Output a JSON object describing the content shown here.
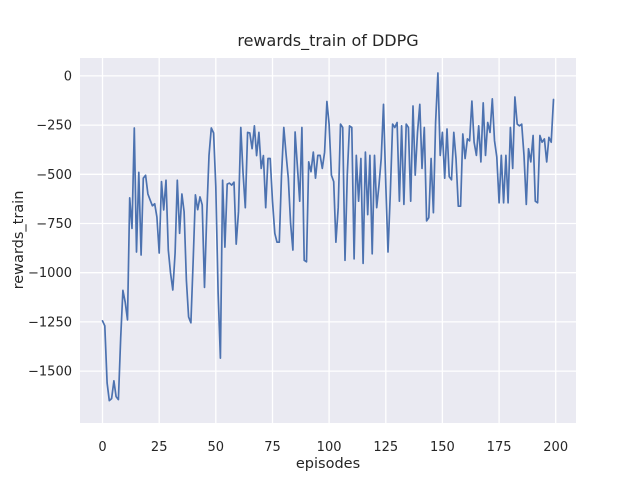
{
  "chart_data": {
    "type": "line",
    "title": "rewards_train of DDPG",
    "xlabel": "episodes",
    "ylabel": "rewards_train",
    "legend": "none",
    "grid": true,
    "style": "seaborn-darkgrid",
    "plot_bg_color": "#eaeaf2",
    "grid_color": "#ffffff",
    "line_color": "#4c72b0",
    "text_color": "#262626",
    "xlim": [
      -9.95,
      208.95
    ],
    "ylim": [
      -1764,
      91
    ],
    "x_ticks": [
      0,
      25,
      50,
      75,
      100,
      125,
      150,
      175,
      200
    ],
    "x_tick_labels": [
      "0",
      "25",
      "50",
      "75",
      "100",
      "125",
      "150",
      "175",
      "200"
    ],
    "y_ticks": [
      0,
      -250,
      -500,
      -750,
      -1000,
      -1250,
      -1500
    ],
    "y_tick_labels": [
      "0",
      "−250",
      "−500",
      "−750",
      "−1000",
      "−1250",
      "−1500"
    ],
    "x_start": 0,
    "x_step": 1,
    "series_name": "rewards_train",
    "values": [
      -1245,
      -1270,
      -1560,
      -1650,
      -1640,
      -1550,
      -1630,
      -1645,
      -1330,
      -1090,
      -1150,
      -1240,
      -620,
      -775,
      -265,
      -895,
      -490,
      -910,
      -520,
      -505,
      -600,
      -630,
      -660,
      -650,
      -717,
      -900,
      -537,
      -681,
      -530,
      -885,
      -1000,
      -1088,
      -900,
      -530,
      -800,
      -600,
      -690,
      -1040,
      -1225,
      -1255,
      -935,
      -605,
      -680,
      -615,
      -655,
      -1075,
      -700,
      -405,
      -265,
      -290,
      -563,
      -1100,
      -1434,
      -530,
      -870,
      -550,
      -545,
      -555,
      -540,
      -855,
      -690,
      -262,
      -490,
      -670,
      -287,
      -290,
      -370,
      -254,
      -405,
      -287,
      -470,
      -405,
      -670,
      -420,
      -420,
      -637,
      -800,
      -845,
      -845,
      -505,
      -262,
      -400,
      -520,
      -750,
      -885,
      -285,
      -460,
      -637,
      -262,
      -937,
      -945,
      -437,
      -487,
      -387,
      -520,
      -404,
      -404,
      -470,
      -387,
      -130,
      -245,
      -504,
      -537,
      -845,
      -670,
      -245,
      -262,
      -937,
      -500,
      -254,
      -262,
      -930,
      -404,
      -637,
      -420,
      -953,
      -387,
      -705,
      -404,
      -904,
      -404,
      -670,
      -555,
      -420,
      -145,
      -555,
      -895,
      -600,
      -245,
      -262,
      -237,
      -637,
      -254,
      -653,
      -245,
      -262,
      -637,
      -153,
      -504,
      -287,
      -145,
      -470,
      -262,
      -737,
      -720,
      -420,
      -695,
      -237,
      15,
      -404,
      -287,
      -520,
      -270,
      -512,
      -528,
      -287,
      -420,
      -662,
      -662,
      -295,
      -420,
      -320,
      -330,
      -128,
      -337,
      -404,
      -254,
      -437,
      -137,
      -404,
      -237,
      -287,
      -117,
      -329,
      -412,
      -645,
      -404,
      -645,
      -404,
      -645,
      -262,
      -470,
      -107,
      -245,
      -254,
      -245,
      -404,
      -653,
      -370,
      -437,
      -303,
      -637,
      -645,
      -303,
      -337,
      -320,
      -437,
      -312,
      -337,
      -120
    ]
  }
}
